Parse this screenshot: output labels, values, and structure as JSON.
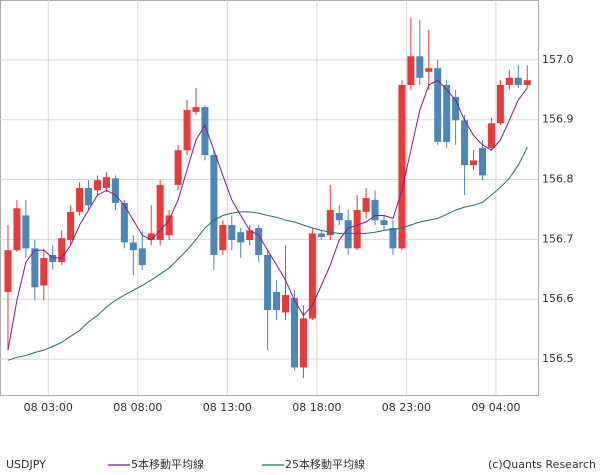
{
  "chart_data": {
    "type": "candlestick",
    "title": "USDJPY",
    "credit": "(c)Quants Research",
    "up_color": "#e8393b",
    "down_color": "#4a86b8",
    "grid": true,
    "xlim": [
      -0.89,
      59.2
    ],
    "xticks": [
      {
        "value": 4.5,
        "label": "08 03:00"
      },
      {
        "value": 14.5,
        "label": "08 08:00"
      },
      {
        "value": 24.5,
        "label": "08 13:00"
      },
      {
        "value": 34.5,
        "label": "08 18:00"
      },
      {
        "value": 44.5,
        "label": "08 23:00"
      },
      {
        "value": 54.5,
        "label": "09 04:00"
      }
    ],
    "ylim": [
      156.44,
      157.1
    ],
    "yticks": [
      156.5,
      156.6,
      156.7,
      156.8,
      156.9,
      {
        "value": 157,
        "label": "157.0"
      }
    ],
    "open": [
      156.612,
      156.682,
      156.74,
      156.685,
      156.623,
      156.674,
      156.662,
      156.699,
      156.746,
      156.786,
      156.782,
      156.786,
      156.802,
      156.761,
      156.695,
      156.685,
      156.699,
      156.699,
      156.707,
      156.791,
      156.849,
      156.913,
      156.921,
      156.841,
      156.682,
      156.724,
      156.712,
      156.699,
      156.719,
      156.674,
      156.612,
      156.578,
      156.602,
      156.486,
      156.568,
      156.71,
      156.707,
      156.744,
      156.732,
      156.685,
      156.746,
      156.766,
      156.732,
      156.719,
      156.685,
      156.958,
      157.006,
      156.98,
      156.986,
      156.958,
      156.938,
      156.899,
      156.824,
      156.853,
      156.853,
      156.894,
      156.958,
      156.97,
      156.958
    ],
    "high": [
      156.724,
      156.766,
      156.766,
      156.699,
      156.685,
      156.69,
      156.715,
      156.757,
      156.796,
      156.799,
      156.807,
      156.812,
      156.807,
      156.766,
      156.707,
      156.715,
      156.757,
      156.799,
      156.749,
      156.858,
      156.933,
      156.953,
      156.924,
      156.849,
      156.732,
      156.74,
      156.719,
      156.724,
      156.724,
      156.682,
      156.632,
      156.69,
      156.615,
      156.59,
      156.719,
      156.715,
      156.791,
      156.757,
      156.749,
      156.774,
      156.786,
      156.782,
      156.74,
      156.732,
      156.966,
      157.07,
      157.067,
      157.05,
      157.0,
      156.966,
      156.95,
      156.908,
      156.849,
      156.866,
      156.903,
      156.966,
      156.983,
      156.991,
      156.991
    ],
    "low": [
      156.515,
      156.679,
      156.669,
      156.598,
      156.598,
      156.649,
      156.657,
      156.69,
      156.74,
      156.749,
      156.774,
      156.779,
      156.749,
      156.685,
      156.64,
      156.649,
      156.69,
      156.69,
      156.699,
      156.782,
      156.841,
      156.908,
      156.832,
      156.649,
      156.674,
      156.682,
      156.669,
      156.69,
      156.662,
      156.515,
      156.565,
      156.565,
      156.481,
      156.468,
      156.565,
      156.699,
      156.699,
      156.724,
      156.674,
      156.682,
      156.735,
      156.724,
      156.715,
      156.674,
      156.682,
      156.95,
      156.958,
      156.95,
      156.858,
      156.853,
      156.858,
      156.774,
      156.816,
      156.799,
      156.849,
      156.891,
      156.95,
      156.953,
      156.953
    ],
    "close": [
      156.682,
      156.752,
      156.685,
      156.62,
      156.669,
      156.662,
      156.702,
      156.746,
      156.786,
      156.757,
      156.799,
      156.804,
      156.761,
      156.695,
      156.682,
      156.657,
      156.71,
      156.791,
      156.74,
      156.849,
      156.916,
      156.921,
      156.841,
      156.674,
      156.724,
      156.699,
      156.695,
      156.715,
      156.674,
      156.582,
      156.582,
      156.607,
      156.486,
      156.568,
      156.71,
      156.704,
      156.749,
      156.732,
      156.685,
      156.749,
      156.769,
      156.732,
      156.724,
      156.685,
      156.958,
      157.006,
      156.97,
      156.986,
      156.863,
      156.863,
      156.899,
      156.824,
      156.832,
      156.807,
      156.894,
      156.958,
      156.97,
      156.958,
      156.966
    ],
    "series": [
      {
        "name": "5本移動平均線",
        "color": "#8b1a8b",
        "values": [
          156.515,
          156.598,
          156.662,
          156.682,
          156.682,
          156.669,
          156.669,
          156.69,
          156.724,
          156.749,
          156.774,
          156.782,
          156.774,
          156.757,
          156.732,
          156.707,
          156.699,
          156.715,
          156.732,
          156.766,
          156.816,
          156.866,
          156.891,
          156.849,
          156.807,
          156.766,
          156.74,
          156.715,
          156.707,
          156.682,
          156.657,
          156.632,
          156.598,
          156.573,
          156.59,
          156.623,
          156.657,
          156.699,
          156.719,
          156.724,
          156.729,
          156.74,
          156.74,
          156.735,
          156.782,
          156.849,
          156.916,
          156.958,
          156.966,
          156.95,
          156.933,
          156.899,
          156.874,
          156.858,
          156.849,
          156.866,
          156.899,
          156.933,
          156.953
        ]
      },
      {
        "name": "25本移動平均線",
        "color": "#2a6e6e",
        "values": [
          156.498,
          156.503,
          156.506,
          156.511,
          156.515,
          156.521,
          156.528,
          156.538,
          156.548,
          156.562,
          156.573,
          156.587,
          156.598,
          156.607,
          156.615,
          156.623,
          156.632,
          156.642,
          156.652,
          156.667,
          156.682,
          156.7,
          156.719,
          156.732,
          156.74,
          156.744,
          156.746,
          156.746,
          156.744,
          156.74,
          156.737,
          156.732,
          156.729,
          156.724,
          156.719,
          156.715,
          156.712,
          156.71,
          156.71,
          156.71,
          156.71,
          156.712,
          156.715,
          156.717,
          156.719,
          156.724,
          156.729,
          156.732,
          156.735,
          156.742,
          156.749,
          156.754,
          156.757,
          156.762,
          156.774,
          156.787,
          156.802,
          156.824,
          156.854
        ]
      }
    ]
  }
}
